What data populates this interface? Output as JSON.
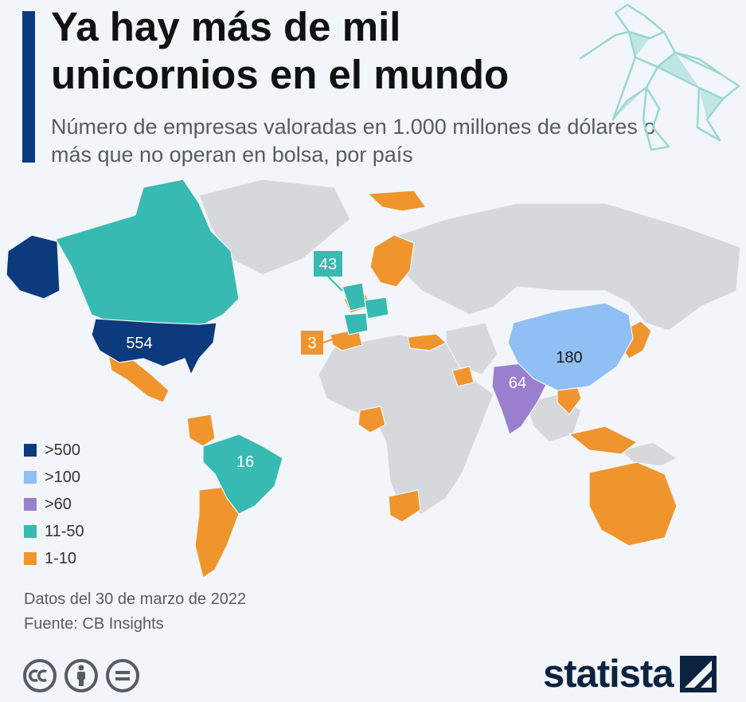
{
  "title": "Ya hay más de mil unicornios en el mundo",
  "subtitle": "Número de empresas valoradas en 1.000 millones de dólares o más que no operan en bolsa, por país",
  "colors": {
    "accent": "#0b3b7c",
    "scale": {
      "over_500": "#0b3b7c",
      "over_100": "#8fbff3",
      "over_60": "#9b7fcf",
      "range_11_50": "#37bab1",
      "range_1_10": "#f0952d"
    },
    "no_data": "#d6d9dc"
  },
  "legend": [
    {
      "label": ">500",
      "color": "#0b3b7c"
    },
    {
      "label": ">100",
      "color": "#8fbff3"
    },
    {
      "label": ">60",
      "color": "#9b7fcf"
    },
    {
      "label": "11-50",
      "color": "#37bab1"
    },
    {
      "label": "1-10",
      "color": "#f0952d"
    }
  ],
  "map_labels": {
    "usa": "554",
    "china": "180",
    "india": "64",
    "uk": "43",
    "brazil": "16",
    "spain": "3"
  },
  "footnote": {
    "date": "Datos del 30 de marzo de 2022",
    "source": "Fuente: CB Insights"
  },
  "brand": {
    "name": "statista"
  },
  "icons": [
    "unicorn-icon",
    "cc-icon",
    "attribution-icon",
    "no-derivatives-icon",
    "statista-logo-icon"
  ]
}
